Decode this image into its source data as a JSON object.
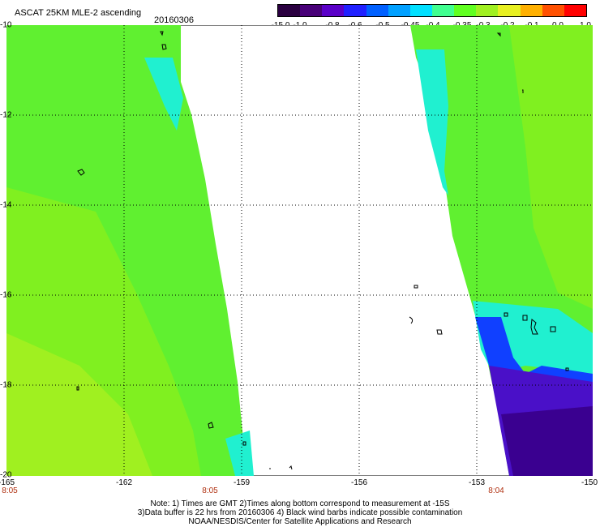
{
  "header": {
    "title": "ASCAT 25KM MLE-2 ascending",
    "date": "20160306"
  },
  "colorbar": {
    "labels": [
      "-15.0",
      "-1.0",
      "-0.8",
      "-0.6",
      "-0.5",
      "-0.45",
      "-0.4",
      "-0.35",
      "-0.3",
      "-0.2",
      "-0.1",
      "0.0",
      "1.0"
    ],
    "colors": [
      "#2a0040",
      "#480078",
      "#5a00c8",
      "#2020ff",
      "#0060ff",
      "#00a0ff",
      "#00e0ff",
      "#40ff90",
      "#60ff20",
      "#a0f020",
      "#e8f020",
      "#ffb000",
      "#ff5000",
      "#ff0000"
    ]
  },
  "map": {
    "lat_labels": [
      "-10",
      "-12",
      "-14",
      "-16",
      "-18",
      "-20"
    ],
    "lon_labels": [
      "-165",
      "-162",
      "-159",
      "-156",
      "-153",
      "-150"
    ],
    "time_labels": [
      "8:05",
      "8:05",
      "8:04"
    ],
    "colors": {
      "green": "#60f030",
      "lightgreen": "#80f020",
      "yellowgreen": "#a0f020",
      "cyan": "#20f0d0",
      "blue": "#1040ff",
      "purple": "#4a10c8",
      "darkpurple": "#3a0090"
    }
  },
  "notes": {
    "line1": "Note: 1) Times are GMT 2)Times along bottom correspond to measurement at -15S",
    "line2": "3)Data buffer is 22 hrs from 20160306 4) Black wind barbs indicate possible contamination",
    "line3": "NOAA/NESDIS/Center for Satellite Applications and Research"
  }
}
